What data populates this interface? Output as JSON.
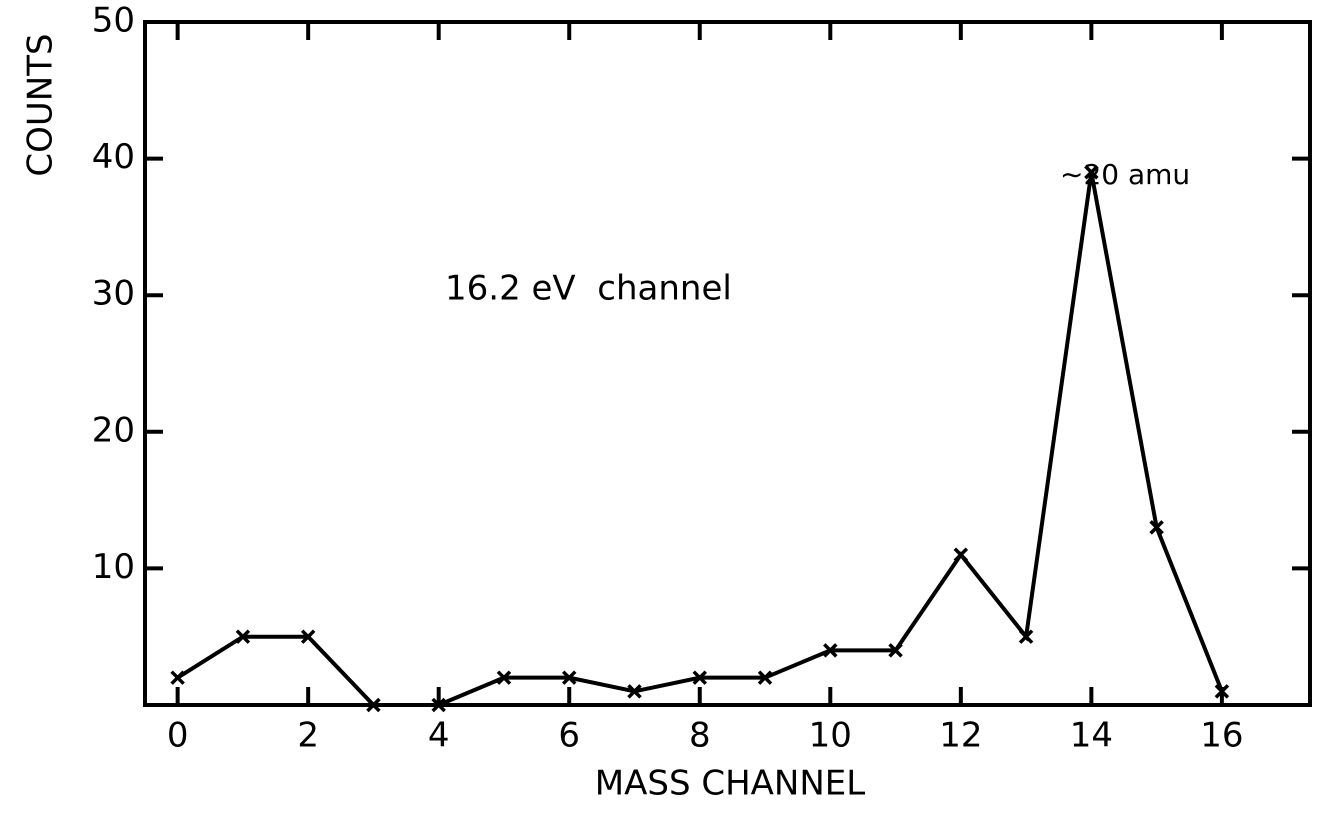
{
  "chart_data": {
    "type": "line",
    "xlabel": "MASS CHANNEL",
    "ylabel": "COUNTS",
    "annotations": [
      "16.2 eV  channel",
      "∼20 amu"
    ],
    "x": [
      0,
      1,
      2,
      3,
      4,
      5,
      6,
      7,
      8,
      9,
      10,
      11,
      12,
      13,
      14,
      15,
      16
    ],
    "series": [
      {
        "name": "counts",
        "color": "#000000",
        "values": [
          2,
          5,
          5,
          0,
          0,
          2,
          2,
          1,
          2,
          2,
          4,
          4,
          11,
          5,
          39,
          13,
          1
        ]
      }
    ],
    "xlim": [
      -0.5,
      17.35
    ],
    "xticks": [
      0,
      2,
      4,
      6,
      8,
      10,
      12,
      14,
      16
    ],
    "ylim": [
      0,
      50
    ],
    "yticks": [
      10,
      20,
      30,
      40,
      50
    ],
    "grid": false
  }
}
